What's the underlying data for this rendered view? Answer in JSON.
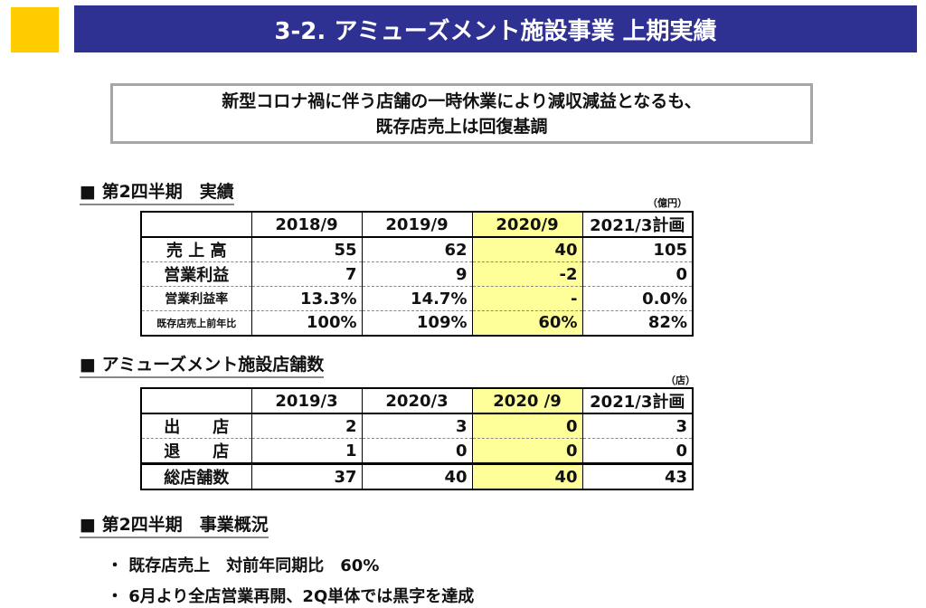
{
  "title": "3-2. アミューズメント施設事業 上期実績",
  "summary": {
    "line1": "新型コロナ禍に伴う店舗の一時休業により減収減益となるも、",
    "line2": "既存店売上は回復基調"
  },
  "colors": {
    "title_bg": "#2e3192",
    "accent_square": "#ffcc00",
    "highlight": "#ffff99"
  },
  "section1": {
    "heading": "■ 第2四半期　実績",
    "unit": "（億円）",
    "headers": [
      "",
      "2018/9",
      "2019/9",
      "2020/9",
      "2021/3計画"
    ],
    "rows": [
      {
        "label": "売 上 高",
        "values": [
          "55",
          "62",
          "40",
          "105"
        ]
      },
      {
        "label": "営業利益",
        "values": [
          "7",
          "9",
          "-2",
          "0"
        ]
      },
      {
        "label": "営業利益率",
        "values": [
          "13.3%",
          "14.7%",
          "-",
          "0.0%"
        ]
      },
      {
        "label": "既存店売上前年比",
        "values": [
          "100%",
          "109%",
          "60%",
          "82%"
        ]
      }
    ]
  },
  "section2": {
    "heading": "■ アミューズメント施設店舗数",
    "unit": "（店）",
    "headers": [
      "",
      "2019/3",
      "2020/3",
      "2020 /9",
      "2021/3計画"
    ],
    "rows": [
      {
        "label": "出　　店",
        "values": [
          "2",
          "3",
          "0",
          "3"
        ]
      },
      {
        "label": "退　　店",
        "values": [
          "1",
          "0",
          "0",
          "0"
        ]
      },
      {
        "label": "総店舗数",
        "values": [
          "37",
          "40",
          "40",
          "43"
        ]
      }
    ]
  },
  "section3": {
    "heading": "■ 第2四半期　事業概況",
    "bullets": [
      "・ 既存店売上　対前年同期比　60%",
      "・ 6月より全店営業再開、2Q単体では黒字を達成"
    ]
  }
}
